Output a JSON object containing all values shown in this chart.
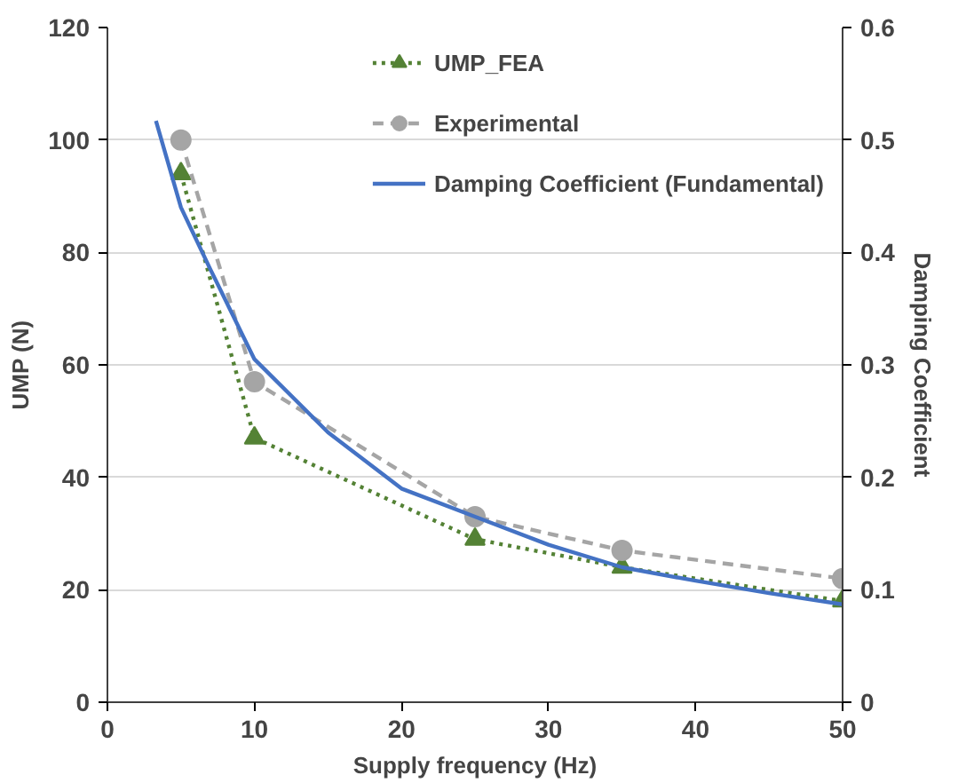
{
  "chart_data": {
    "type": "line",
    "xlabel": "Supply frequency (Hz)",
    "ylabel": "UMP (N)",
    "y2label": "Damping Coefficient",
    "xlim": [
      0,
      50
    ],
    "xticks": [
      0,
      10,
      20,
      30,
      40,
      50
    ],
    "ylim": [
      0,
      120
    ],
    "yticks": [
      0,
      20,
      40,
      60,
      80,
      100,
      120
    ],
    "y2lim": [
      0,
      0.6
    ],
    "y2ticks": [
      0,
      0.1,
      0.2,
      0.3,
      0.4,
      0.5,
      0.6
    ],
    "grid": "y",
    "legend": "top right",
    "series": [
      {
        "name": "UMP_FEA",
        "color": "#548235",
        "x": [
          5,
          10,
          25,
          35,
          50
        ],
        "values": [
          94,
          47,
          29,
          24,
          18
        ],
        "marker": "triangle",
        "line_style": "dotted"
      },
      {
        "name": "Experimental",
        "color": "#a5a5a5",
        "x": [
          5,
          10,
          25,
          35,
          50
        ],
        "values": [
          100,
          57,
          33,
          27,
          22
        ],
        "marker": "circle",
        "line_style": "dashed"
      },
      {
        "name": "Damping Coefficient (Fundamental)",
        "color": "#4472c4",
        "axis": "y2",
        "x": [
          3.3,
          5,
          7,
          10,
          15,
          20,
          25,
          30,
          35,
          40,
          45,
          50
        ],
        "values": [
          0.517,
          0.44,
          0.385,
          0.305,
          0.24,
          0.19,
          0.165,
          0.14,
          0.12,
          0.108,
          0.097,
          0.087
        ],
        "marker": "none",
        "line_style": "solid"
      }
    ]
  }
}
